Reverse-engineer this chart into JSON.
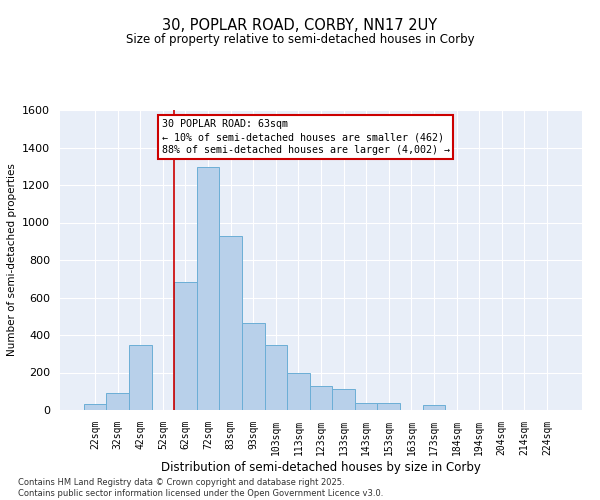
{
  "title_line1": "30, POPLAR ROAD, CORBY, NN17 2UY",
  "title_line2": "Size of property relative to semi-detached houses in Corby",
  "xlabel": "Distribution of semi-detached houses by size in Corby",
  "ylabel": "Number of semi-detached properties",
  "footnote": "Contains HM Land Registry data © Crown copyright and database right 2025.\nContains public sector information licensed under the Open Government Licence v3.0.",
  "bins": [
    "22sqm",
    "32sqm",
    "42sqm",
    "52sqm",
    "62sqm",
    "72sqm",
    "83sqm",
    "93sqm",
    "103sqm",
    "113sqm",
    "123sqm",
    "133sqm",
    "143sqm",
    "153sqm",
    "163sqm",
    "173sqm",
    "184sqm",
    "194sqm",
    "204sqm",
    "214sqm",
    "224sqm"
  ],
  "values": [
    30,
    90,
    345,
    0,
    685,
    1295,
    930,
    465,
    345,
    195,
    130,
    110,
    35,
    35,
    0,
    25,
    0,
    0,
    0,
    0,
    0
  ],
  "bar_color": "#b8d0ea",
  "bar_edge_color": "#6baed6",
  "bg_color": "#e8eef8",
  "grid_color": "#ffffff",
  "vline_color": "#cc0000",
  "vline_pos": 3.5,
  "annotation_text": "30 POPLAR ROAD: 63sqm\n← 10% of semi-detached houses are smaller (462)\n88% of semi-detached houses are larger (4,002) →",
  "annotation_box_color": "#cc0000",
  "ylim": [
    0,
    1600
  ],
  "yticks": [
    0,
    200,
    400,
    600,
    800,
    1000,
    1200,
    1400,
    1600
  ]
}
